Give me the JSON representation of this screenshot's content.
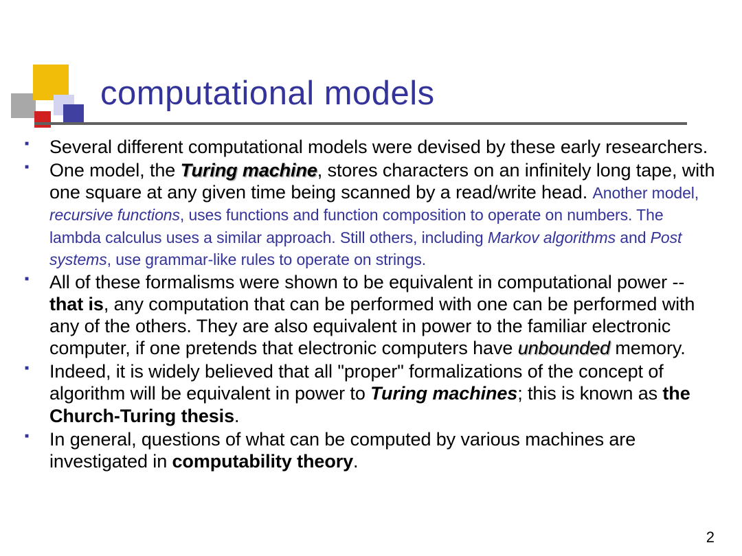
{
  "colors": {
    "title": "#333399",
    "sub_text": "#333399",
    "bullet": "#333399",
    "hr": "#606060",
    "sq_yellow": "#f2bd08",
    "sq_gray": "#a8a8a8",
    "sq_blue_tl": "#d4d4f0",
    "sq_blue_br": "#4040a0",
    "sq_red": "#d02020"
  },
  "title": "computational models",
  "page_number": "2",
  "bullets": {
    "b1": "Several different computational models were devised by these early researchers.",
    "b2": {
      "pre": "One model, the ",
      "tm": "Turing machine",
      "post": ", stores characters on an infinitely long tape, with one square at any given time being scanned by a read/write head. ",
      "sub_a": "Another model, ",
      "sub_rf": "recursive functions",
      "sub_b": ", uses functions and function composition to operate on numbers. The lambda calculus uses a similar approach. Still others, including ",
      "sub_ma": "Markov algorithms",
      "sub_and": " and ",
      "sub_ps": "Post systems",
      "sub_c": ", use grammar-like rules to operate on strings."
    },
    "b3": {
      "a": "All of these formalisms were shown to be equivalent in computational power -- ",
      "that_is": "that is",
      "b": ", any computation that can be performed with one can be performed with any of the others. They are also equivalent in power to the familiar electronic computer, if one pretends that electronic computers have ",
      "unbounded": "unbounded",
      "c": " memory."
    },
    "b4": {
      "a": "Indeed, it is widely believed that all \"proper\" formalizations of the concept of algorithm will be equivalent in power to ",
      "tms": "Turing machines",
      "b": "; this is known as ",
      "ctt": "the Church-Turing thesis",
      "c": "."
    },
    "b5": {
      "a": "In general, questions of what can be computed by various machines are investigated in ",
      "ct": "computability theory",
      "b": "."
    }
  }
}
